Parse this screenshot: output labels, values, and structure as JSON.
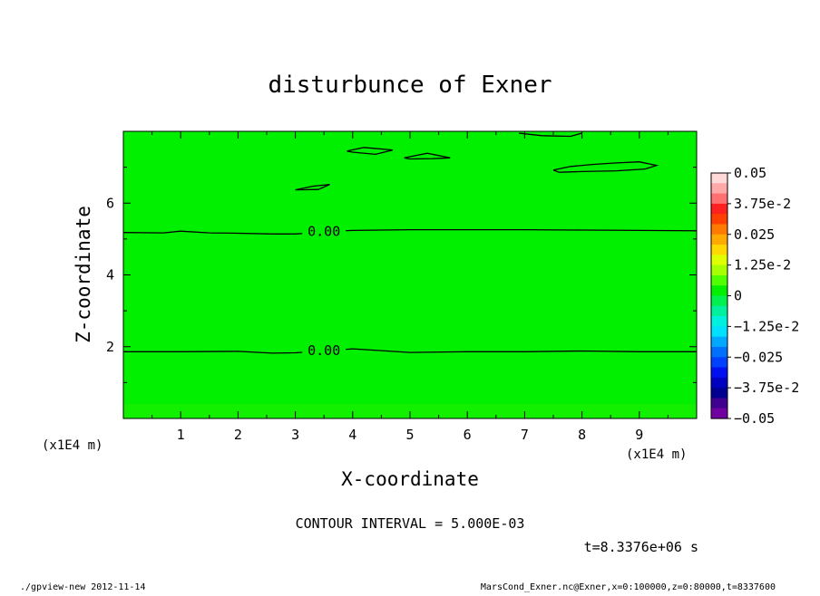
{
  "chart_data": {
    "type": "heatmap",
    "title": "disturbunce of Exner",
    "xlabel": "X-coordinate",
    "ylabel": "Z-coordinate",
    "x_unit": "(x1E4 m)",
    "x_unit_left": "(x1E4 m)",
    "xlim": [
      0,
      10
    ],
    "ylim": [
      0,
      8
    ],
    "xticks": [
      "1",
      "2",
      "3",
      "4",
      "5",
      "6",
      "7",
      "8",
      "9"
    ],
    "yticks": [
      "2",
      "4",
      "6"
    ],
    "field_value": 0,
    "field_color": "#00f000",
    "contour_label": "0.00",
    "contours": [
      {
        "name": "c1",
        "label": "0.00",
        "x": [
          0.0,
          0.7,
          1.0,
          1.5,
          2.0,
          2.6,
          3.0,
          3.6,
          4.0,
          5.0,
          6.0,
          7.0,
          8.0,
          9.0,
          10.0
        ],
        "y": [
          5.18,
          5.17,
          5.22,
          5.17,
          5.16,
          5.14,
          5.14,
          5.21,
          5.24,
          5.26,
          5.26,
          5.26,
          5.25,
          5.24,
          5.23
        ]
      },
      {
        "name": "c2",
        "label": "0.00",
        "x": [
          0.0,
          1.0,
          2.0,
          2.6,
          3.0,
          3.6,
          4.0,
          5.0,
          6.0,
          7.0,
          8.0,
          9.0,
          10.0
        ],
        "y": [
          1.86,
          1.86,
          1.87,
          1.82,
          1.83,
          1.89,
          1.94,
          1.84,
          1.86,
          1.86,
          1.88,
          1.86,
          1.86
        ]
      },
      {
        "name": "c3",
        "x": [
          3.0,
          3.3,
          3.6,
          3.4,
          3.0
        ],
        "y": [
          6.37,
          6.47,
          6.52,
          6.38,
          6.37
        ]
      },
      {
        "name": "c4",
        "x": [
          3.9,
          4.2,
          4.7,
          4.4,
          4.0,
          3.9
        ],
        "y": [
          7.45,
          7.55,
          7.48,
          7.36,
          7.42,
          7.45
        ]
      },
      {
        "name": "c5",
        "x": [
          4.9,
          5.3,
          5.7,
          5.4,
          5.0,
          4.9
        ],
        "y": [
          7.26,
          7.39,
          7.26,
          7.24,
          7.23,
          7.26
        ]
      },
      {
        "name": "c6",
        "x": [
          7.5,
          7.8,
          8.2,
          8.6,
          9.0,
          9.3,
          9.1,
          8.6,
          8.0,
          7.6,
          7.5
        ],
        "y": [
          6.92,
          7.02,
          7.08,
          7.12,
          7.15,
          7.05,
          6.95,
          6.9,
          6.88,
          6.86,
          6.92
        ]
      },
      {
        "name": "c7",
        "x": [
          6.9,
          7.3,
          7.8,
          8.0
        ],
        "y": [
          7.95,
          7.88,
          7.86,
          7.95
        ]
      }
    ],
    "colorbar": {
      "labels": [
        "0.05",
        "3.75e-2",
        "0.025",
        "1.25e-2",
        "0",
        "−1.25e-2",
        "−0.025",
        "−3.75e-2",
        "−0.05"
      ],
      "colors": [
        "#ffd8d8",
        "#ffa8a8",
        "#ff7070",
        "#ff2020",
        "#ff4000",
        "#ff7a00",
        "#ffaa00",
        "#ffd800",
        "#e0ff00",
        "#a8ff00",
        "#50ff00",
        "#00f000",
        "#00f050",
        "#00f0a0",
        "#00f0e0",
        "#00e0ff",
        "#00a8ff",
        "#0070ff",
        "#0040ff",
        "#0010f0",
        "#0000c0",
        "#000090",
        "#400090",
        "#7000a0"
      ]
    },
    "annotations": [
      "CONTOUR INTERVAL = 5.000E-03",
      "t=8.3376e+06 s"
    ]
  },
  "footer": {
    "left": "./gpview-new  2012-11-14",
    "right": "MarsCond_Exner.nc@Exner,x=0:100000,z=0:80000,t=8337600"
  }
}
